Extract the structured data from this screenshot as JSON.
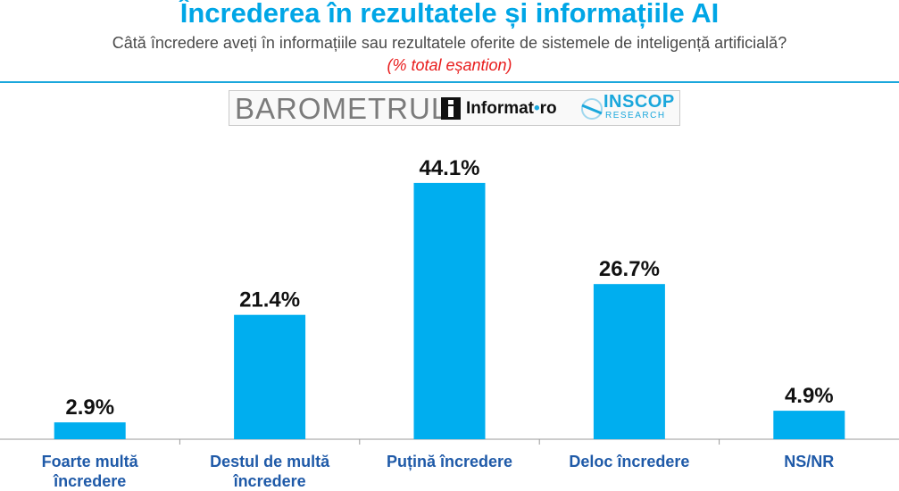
{
  "title": "Încrederea în rezultatele și informațiile AI",
  "subtitle": "Câtă încredere aveți în informațiile sau rezultatele oferite de sistemele de inteligență artificială?",
  "note": "(% total eșantion)",
  "logo": {
    "barometru": "BAROMETRUL",
    "informat": "Informat",
    "informat_dot": "•",
    "informat_suffix": "ro",
    "inscop": "INSCOP",
    "research": "RESEARCH"
  },
  "colors": {
    "title": "#00a6e6",
    "bar": "#00aeef",
    "rule": "#1aa7dc",
    "note": "#e81c1c"
  },
  "chart_data": {
    "type": "bar",
    "title": "Încrederea în rezultatele și informațiile AI",
    "categories": [
      [
        "Foarte multă",
        "încredere"
      ],
      [
        "Destul de multă",
        "încredere"
      ],
      [
        "Puțină încredere"
      ],
      [
        "Deloc încredere"
      ],
      [
        "NS/NR"
      ]
    ],
    "values": [
      2.9,
      21.4,
      44.1,
      26.7,
      4.9
    ],
    "labels": [
      "2.9%",
      "21.4%",
      "44.1%",
      "26.7%",
      "4.9%"
    ],
    "unit": "%",
    "ylim": [
      0,
      50
    ],
    "grid": false,
    "legend": "none"
  }
}
